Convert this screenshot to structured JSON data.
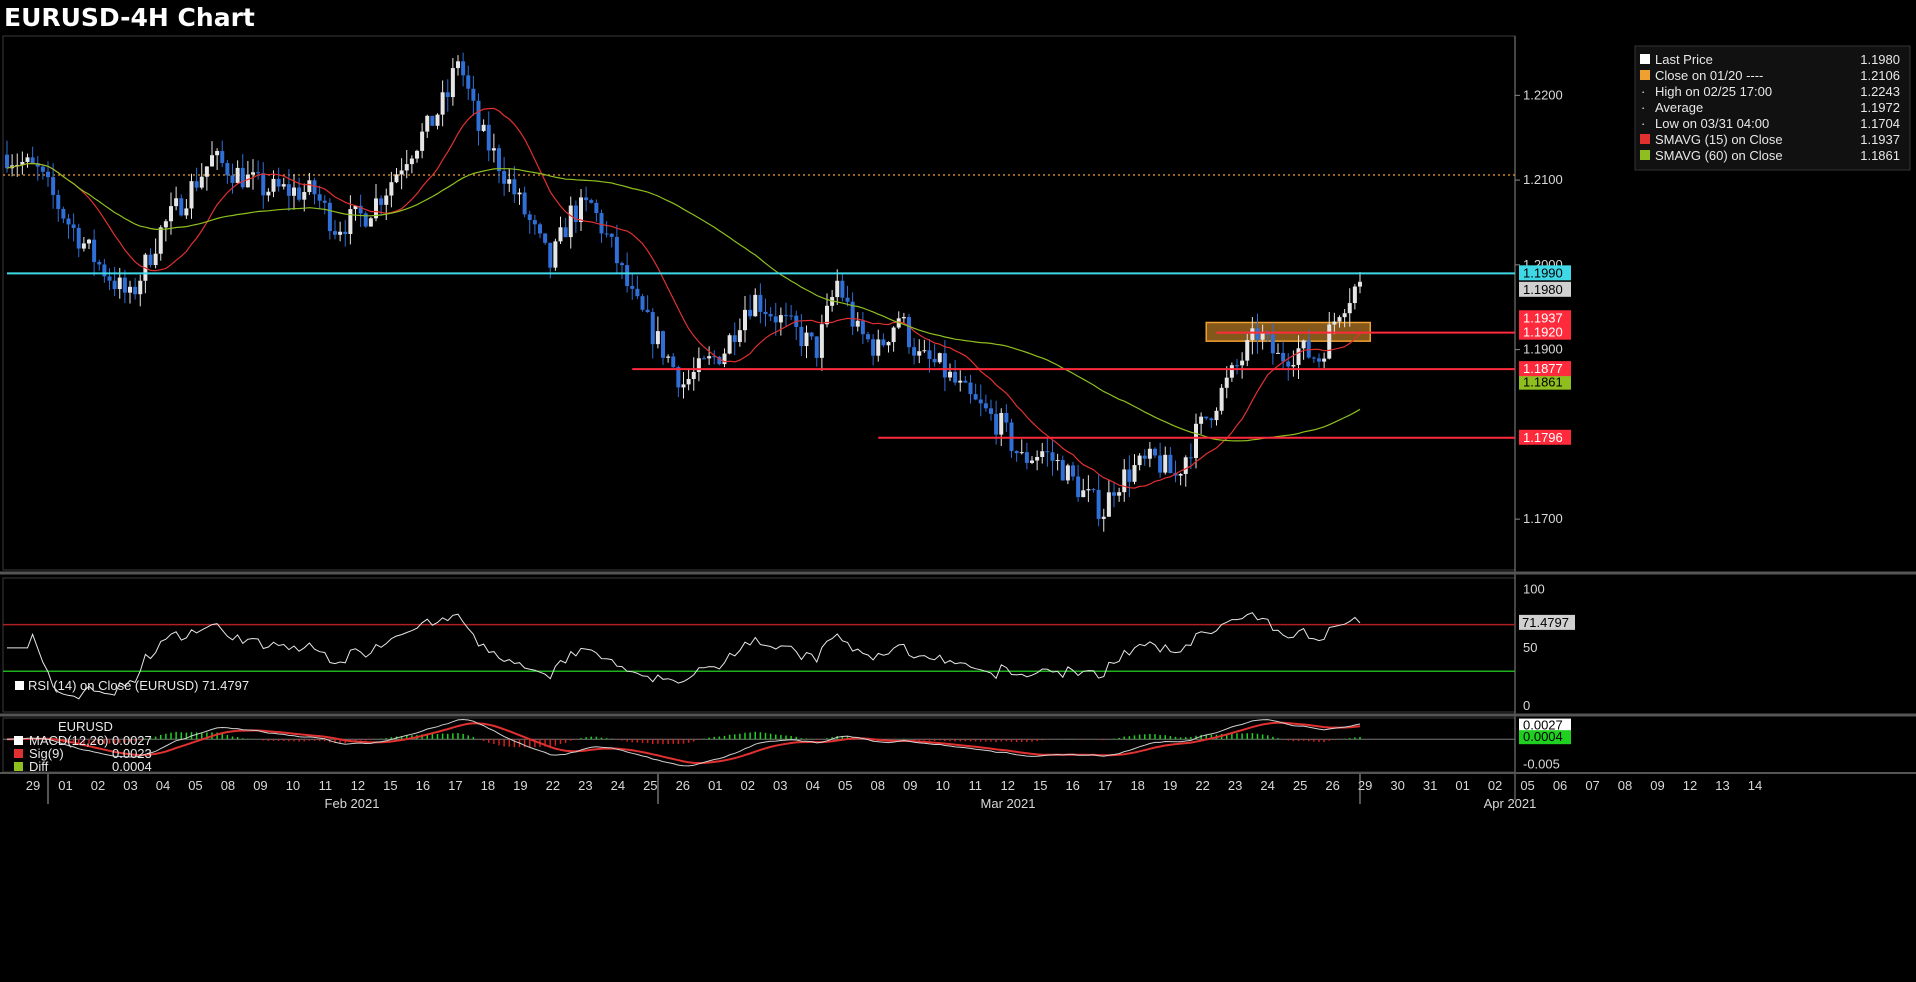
{
  "title": "EURUSD-4H Chart",
  "colors": {
    "bull": "#e6e6e6",
    "bear": "#2f6fd6",
    "sma15": "#e03030",
    "sma60": "#8fbf1f",
    "support": "#ff2b3c",
    "cyan": "#3fd8e6",
    "orange": "#f0a030",
    "rsi": "#e6e6e6",
    "rsi_upper": "#b02020",
    "rsi_lower": "#20b020"
  },
  "chart_data": [
    {
      "type": "candlestick",
      "title": "EURUSD-4H Chart",
      "ylim": [
        1.164,
        1.227
      ],
      "y_ticks": [
        "1.2200",
        "1.2100",
        "1.2000",
        "1.1900",
        "1.1700"
      ],
      "x_ticks": [
        "29",
        "01",
        "02",
        "03",
        "04",
        "05",
        "08",
        "09",
        "10",
        "11",
        "12",
        "15",
        "16",
        "17",
        "18",
        "19",
        "22",
        "23",
        "24",
        "25",
        "26",
        "01",
        "02",
        "03",
        "04",
        "05",
        "08",
        "09",
        "10",
        "11",
        "12",
        "15",
        "16",
        "17",
        "18",
        "19",
        "22",
        "23",
        "24",
        "25",
        "26",
        "29",
        "30",
        "31",
        "01",
        "02",
        "05",
        "06",
        "07",
        "08",
        "09",
        "12",
        "13",
        "14"
      ],
      "x_months": [
        "Feb 2021",
        "Mar 2021",
        "Apr 2021"
      ],
      "anchors": [
        [
          0,
          1.213
        ],
        [
          6,
          1.211
        ],
        [
          12,
          1.205
        ],
        [
          18,
          1.2
        ],
        [
          24,
          1.196
        ],
        [
          30,
          1.204
        ],
        [
          40,
          1.2125
        ],
        [
          50,
          1.209
        ],
        [
          60,
          1.2085
        ],
        [
          64,
          1.2045
        ],
        [
          70,
          1.206
        ],
        [
          74,
          1.209
        ],
        [
          78,
          1.213
        ],
        [
          82,
          1.216
        ],
        [
          86,
          1.22
        ],
        [
          88,
          1.2245
        ],
        [
          92,
          1.216
        ],
        [
          96,
          1.212
        ],
        [
          102,
          1.205
        ],
        [
          106,
          1.2
        ],
        [
          110,
          1.206
        ],
        [
          114,
          1.207
        ],
        [
          118,
          1.202
        ],
        [
          122,
          1.196
        ],
        [
          128,
          1.19
        ],
        [
          132,
          1.186
        ],
        [
          136,
          1.188
        ],
        [
          140,
          1.19
        ],
        [
          144,
          1.195
        ],
        [
          146,
          1.196
        ],
        [
          150,
          1.194
        ],
        [
          154,
          1.192
        ],
        [
          158,
          1.19
        ],
        [
          162,
          1.198
        ],
        [
          166,
          1.192
        ],
        [
          170,
          1.19
        ],
        [
          174,
          1.194
        ],
        [
          178,
          1.189
        ],
        [
          182,
          1.188
        ],
        [
          188,
          1.184
        ],
        [
          194,
          1.181
        ],
        [
          198,
          1.177
        ],
        [
          202,
          1.178
        ],
        [
          206,
          1.176
        ],
        [
          210,
          1.173
        ],
        [
          214,
          1.171
        ],
        [
          216,
          1.174
        ],
        [
          220,
          1.176
        ],
        [
          224,
          1.177
        ],
        [
          228,
          1.175
        ],
        [
          232,
          1.18
        ],
        [
          236,
          1.184
        ],
        [
          240,
          1.188
        ],
        [
          244,
          1.192
        ],
        [
          248,
          1.189
        ],
        [
          252,
          1.19
        ],
        [
          256,
          1.189
        ],
        [
          258,
          1.192
        ],
        [
          260,
          1.195
        ],
        [
          264,
          1.198
        ]
      ],
      "candles_total": 265,
      "levels": [
        {
          "value": 1.199,
          "label": "1.1990",
          "color": "cyan",
          "from": 0
        },
        {
          "value": 1.192,
          "label": "1.1920",
          "color": "support",
          "from": 236
        },
        {
          "value": 1.1877,
          "label": "1.1877",
          "color": "support",
          "from": 122
        },
        {
          "value": 1.1796,
          "label": "1.1796",
          "color": "support",
          "from": 170
        },
        {
          "value": 1.2106,
          "label": "",
          "color": "orange",
          "dotted": true,
          "from": 0
        }
      ],
      "value_tags": [
        {
          "value": 1.1937,
          "label": "1.1937",
          "color": "support"
        },
        {
          "value": 1.1861,
          "label": "1.1861",
          "color": "sma60"
        }
      ],
      "zone": {
        "from": 234,
        "to": 266,
        "low": 1.191,
        "high": 1.1932
      },
      "legend": [
        {
          "swatch": "white",
          "label": "Last Price",
          "value": "1.1980"
        },
        {
          "swatch": "orange",
          "label": "Close on 01/20 ----",
          "value": "1.2106"
        },
        {
          "swatch": "none",
          "label": "High on 02/25 17:00",
          "value": "1.2243"
        },
        {
          "swatch": "none",
          "label": "Average",
          "value": "1.1972"
        },
        {
          "swatch": "none",
          "label": "Low on 03/31 04:00",
          "value": "1.1704"
        },
        {
          "swatch": "red",
          "label": "SMAVG (15)  on Close",
          "value": "1.1937"
        },
        {
          "swatch": "green",
          "label": "SMAVG (60)  on Close",
          "value": "1.1861"
        }
      ]
    },
    {
      "type": "line",
      "name": "RSI (14)  on Close (EURUSD) 71.4797",
      "ylim": [
        -5,
        110
      ],
      "y_ticks": [
        "100",
        "50",
        "0"
      ],
      "upper": 70,
      "lower": 30,
      "last": "71.4797",
      "legend": "RSI (14)  on Close (EURUSD) 71.4797"
    },
    {
      "type": "histogram",
      "ylim": [
        -0.0065,
        0.0042
      ],
      "y_ticks": [
        "-0.005"
      ],
      "title": "EURUSD",
      "tags": [
        {
          "value": 0.0027,
          "label": "0.0027",
          "color": "white"
        },
        {
          "value": 0.0004,
          "label": "0.0004",
          "color": "green"
        }
      ],
      "legend": [
        {
          "swatch": "white",
          "label": "MACD(12,26)",
          "value": "0.0027"
        },
        {
          "swatch": "red",
          "label": "Sig(9)",
          "value": "0.0023"
        },
        {
          "swatch": "green",
          "label": "Diff",
          "value": "0.0004"
        }
      ]
    }
  ]
}
